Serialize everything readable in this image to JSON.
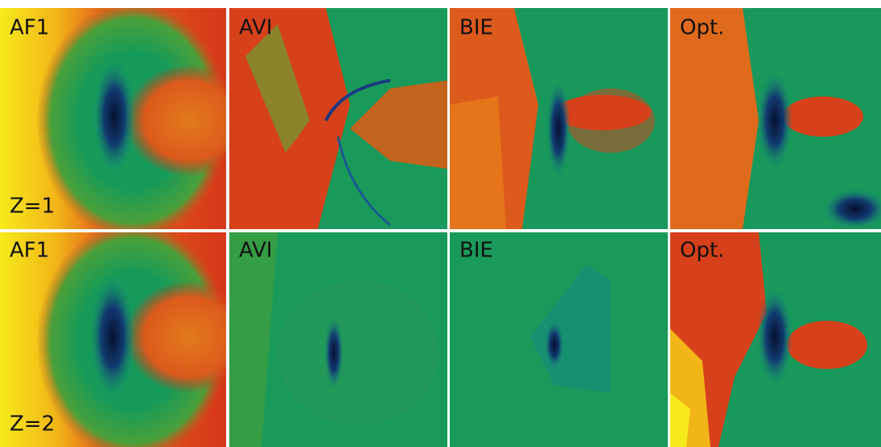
{
  "rows": [
    {
      "label": "Z=1",
      "panels": [
        "AF1",
        "AVI",
        "BIE",
        "Opt."
      ]
    },
    {
      "label": "Z=2",
      "panels": [
        "AF1",
        "AVI",
        "BIE",
        "Opt."
      ]
    }
  ]
}
